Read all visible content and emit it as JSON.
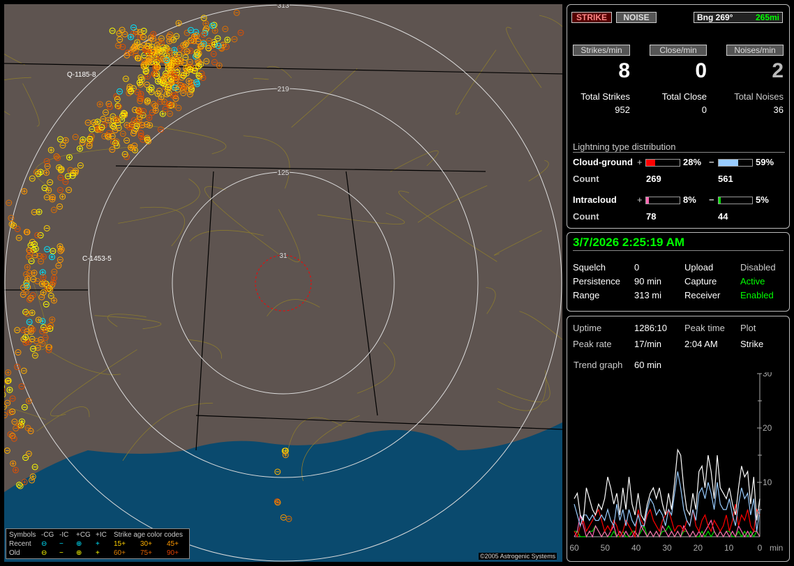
{
  "toolbar": {
    "strike_label": "STRIKE",
    "noise_label": "NOISE",
    "bearing": "Bng 269°",
    "distance": "265mi"
  },
  "rates": {
    "strikes_label": "Strikes/min",
    "close_label": "Close/min",
    "noises_label": "Noises/min",
    "strikes": "8",
    "close": "0",
    "noises": "2"
  },
  "totals": {
    "strikes_label": "Total Strikes",
    "close_label": "Total Close",
    "noises_label": "Total Noises",
    "strikes": "952",
    "close": "0",
    "noises": "36"
  },
  "distribution": {
    "title": "Lightning type distribution",
    "cg_label": "Cloud-ground",
    "ic_label": "Intracloud",
    "count_label": "Count",
    "plus": "+",
    "minus": "−",
    "cg_plus_pct": "28%",
    "cg_minus_pct": "59%",
    "ic_plus_pct": "8%",
    "ic_minus_pct": "5%",
    "cg_plus_count": "269",
    "cg_minus_count": "561",
    "ic_plus_count": "78",
    "ic_minus_count": "44",
    "fill": {
      "cg_plus": 28,
      "cg_minus": 59,
      "ic_plus": 8,
      "ic_minus": 5
    },
    "colors": {
      "cg_plus": "#ff0000",
      "cg_minus": "#99ccff",
      "ic_plus": "#ff69b4",
      "ic_minus": "#00dd00"
    }
  },
  "status": {
    "datetime": "3/7/2026 2:25:19 AM",
    "squelch_label": "Squelch",
    "squelch": "0",
    "persistence_label": "Persistence",
    "persistence": "90 min",
    "range_label": "Range",
    "range": "313 mi",
    "upload_label": "Upload",
    "upload": "Disabled",
    "capture_label": "Capture",
    "capture": "Active",
    "receiver_label": "Receiver",
    "receiver": "Enabled"
  },
  "stats": {
    "uptime_label": "Uptime",
    "uptime": "1286:10",
    "peak_time_label": "Peak time",
    "plot_label": "Plot",
    "peak_rate_label": "Peak rate",
    "peak_rate": "17/min",
    "peak_time": "2:04 AM",
    "plot": "Strike",
    "trend_label": "Trend graph",
    "trend": "60 min"
  },
  "map": {
    "range_rings": [
      "31",
      "125",
      "219",
      "313"
    ],
    "storm_labels": [
      "Q-1185-8",
      "C-1453-5"
    ],
    "copyright": "©2005 Astrogenic Systems"
  },
  "legend": {
    "header": [
      "Symbols",
      "-CG",
      "-IC",
      "+CG",
      "+IC",
      "Strike age color codes"
    ],
    "recent": "Recent",
    "old": "Old",
    "recent_ages": [
      "15+",
      "30+",
      "45+"
    ],
    "old_ages": [
      "60+",
      "75+",
      "90+"
    ]
  },
  "chart_data": {
    "type": "line",
    "xlabel": "min",
    "x_ticks": [
      "60",
      "50",
      "40",
      "30",
      "20",
      "10",
      "0"
    ],
    "y_ticks": [
      "10",
      "20",
      "30"
    ],
    "xlim": [
      60,
      0
    ],
    "ylim": [
      0,
      30
    ],
    "series": [
      {
        "color": "#ffffff",
        "values": [
          7,
          8,
          4,
          3,
          9,
          7,
          5,
          4,
          6,
          5,
          7,
          11,
          9,
          6,
          8,
          4,
          9,
          5,
          11,
          6,
          4,
          8,
          4,
          3,
          6,
          8,
          9,
          7,
          9,
          6,
          4,
          8,
          5,
          10,
          16,
          15,
          9,
          5,
          4,
          8,
          5,
          12,
          13,
          9,
          15,
          12,
          7,
          15,
          9,
          8,
          7,
          9,
          6,
          4,
          9,
          13,
          11,
          12,
          6,
          11,
          3,
          7
        ]
      },
      {
        "color": "#99ccff",
        "values": [
          6,
          4,
          2,
          4,
          4,
          3,
          4,
          3,
          3,
          4,
          3,
          5,
          3,
          2,
          6,
          3,
          5,
          2,
          5,
          3,
          2,
          4,
          2,
          2,
          5,
          7,
          6,
          4,
          5,
          4,
          2,
          5,
          4,
          8,
          12,
          9,
          5,
          3,
          2,
          5,
          3,
          8,
          9,
          7,
          10,
          8,
          5,
          10,
          6,
          5,
          5,
          7,
          4,
          2,
          6,
          9,
          7,
          8,
          4,
          7,
          1,
          5
        ]
      },
      {
        "color": "#ff0000",
        "values": [
          1,
          0,
          2,
          3,
          1,
          2,
          3,
          4,
          5,
          3,
          1,
          2,
          1,
          3,
          2,
          0,
          1,
          3,
          2,
          1,
          0,
          5,
          3,
          2,
          4,
          5,
          3,
          2,
          1,
          3,
          4,
          5,
          3,
          1,
          2,
          2,
          1,
          3,
          2,
          5,
          2,
          1,
          3,
          4,
          2,
          1,
          3,
          2,
          1,
          2,
          4,
          1,
          3,
          6,
          2,
          4,
          3,
          5,
          2,
          1,
          5,
          4
        ]
      },
      {
        "color": "#ff69b4",
        "values": [
          0,
          1,
          4,
          2,
          0,
          1,
          0,
          2,
          1,
          0,
          1,
          0,
          1,
          2,
          0,
          1,
          0,
          1,
          0,
          0,
          1,
          0,
          2,
          1,
          0,
          1,
          0,
          1,
          0,
          2,
          1,
          0,
          1,
          0,
          1,
          0,
          2,
          1,
          0,
          1,
          0,
          1,
          0,
          1,
          2,
          3,
          1,
          0,
          1,
          0,
          1,
          0,
          1,
          0,
          2,
          1,
          0,
          1,
          0,
          1,
          1,
          0
        ]
      },
      {
        "color": "#00dd00",
        "values": [
          1,
          1,
          0,
          0,
          0,
          1,
          1,
          2,
          1,
          0,
          1,
          0,
          0,
          1,
          0,
          0,
          1,
          0,
          0,
          1,
          1,
          0,
          1,
          2,
          0,
          1,
          0,
          1,
          0,
          1,
          1,
          2,
          1,
          0,
          1,
          0,
          1,
          1,
          0,
          1,
          0,
          0,
          1,
          0,
          1,
          0,
          1,
          0,
          1,
          0,
          1,
          1,
          0,
          0,
          1,
          0,
          1,
          0,
          1,
          0,
          1,
          0
        ]
      }
    ]
  }
}
